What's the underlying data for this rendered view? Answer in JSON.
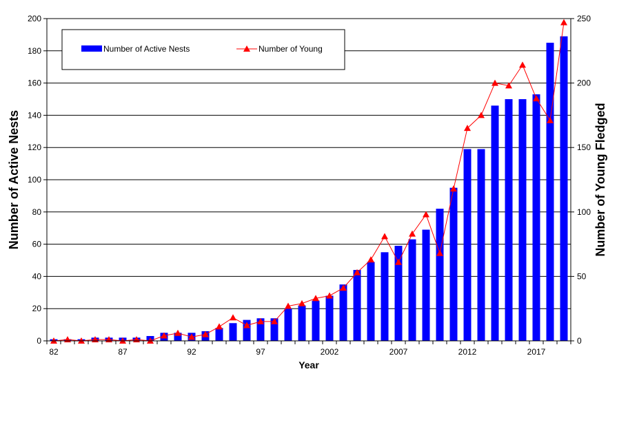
{
  "chart_data": {
    "type": "bar",
    "xlabel": "Year",
    "ylabel": "Number of Active Nests",
    "y2label": "Number of Young Fledged",
    "ylim": [
      0,
      200
    ],
    "y2lim": [
      0,
      250
    ],
    "yticks": [
      "0",
      "20",
      "40",
      "60",
      "80",
      "100",
      "120",
      "140",
      "160",
      "180",
      "200"
    ],
    "y2ticks": [
      "0",
      "50",
      "100",
      "150",
      "200",
      "250"
    ],
    "xticks": [
      "82",
      "87",
      "92",
      "97",
      "2002",
      "2007",
      "2012",
      "2017"
    ],
    "grid": true,
    "legend_position": "top-left",
    "x": [
      1982,
      1983,
      1984,
      1985,
      1986,
      1987,
      1988,
      1989,
      1990,
      1991,
      1992,
      1993,
      1994,
      1995,
      1996,
      1997,
      1998,
      1999,
      2000,
      2001,
      2002,
      2003,
      2004,
      2005,
      2006,
      2007,
      2008,
      2009,
      2010,
      2011,
      2012,
      2013,
      2014,
      2015,
      2016,
      2017,
      2018,
      2019
    ],
    "series": [
      {
        "name": "Number of Active Nests",
        "type": "bar",
        "axis": "left",
        "color": "#0000ff",
        "values": [
          1,
          1,
          1,
          2,
          2,
          2,
          2,
          3,
          5,
          5,
          5,
          6,
          8,
          11,
          13,
          14,
          14,
          20,
          22,
          25,
          28,
          35,
          44,
          49,
          55,
          59,
          63,
          69,
          82,
          95,
          119,
          119,
          146,
          150,
          150,
          153,
          185,
          189
        ]
      },
      {
        "name": "Number of Young",
        "type": "line",
        "axis": "right",
        "color": "#ff0000",
        "marker": "triangle",
        "values": [
          0,
          1,
          0,
          1,
          1,
          0,
          1,
          0,
          4,
          6,
          3,
          5,
          11,
          18,
          12,
          15,
          15,
          27,
          29,
          33,
          35,
          41,
          53,
          63,
          81,
          61,
          83,
          98,
          68,
          118,
          165,
          175,
          200,
          198,
          214,
          188,
          171,
          247
        ]
      }
    ]
  }
}
